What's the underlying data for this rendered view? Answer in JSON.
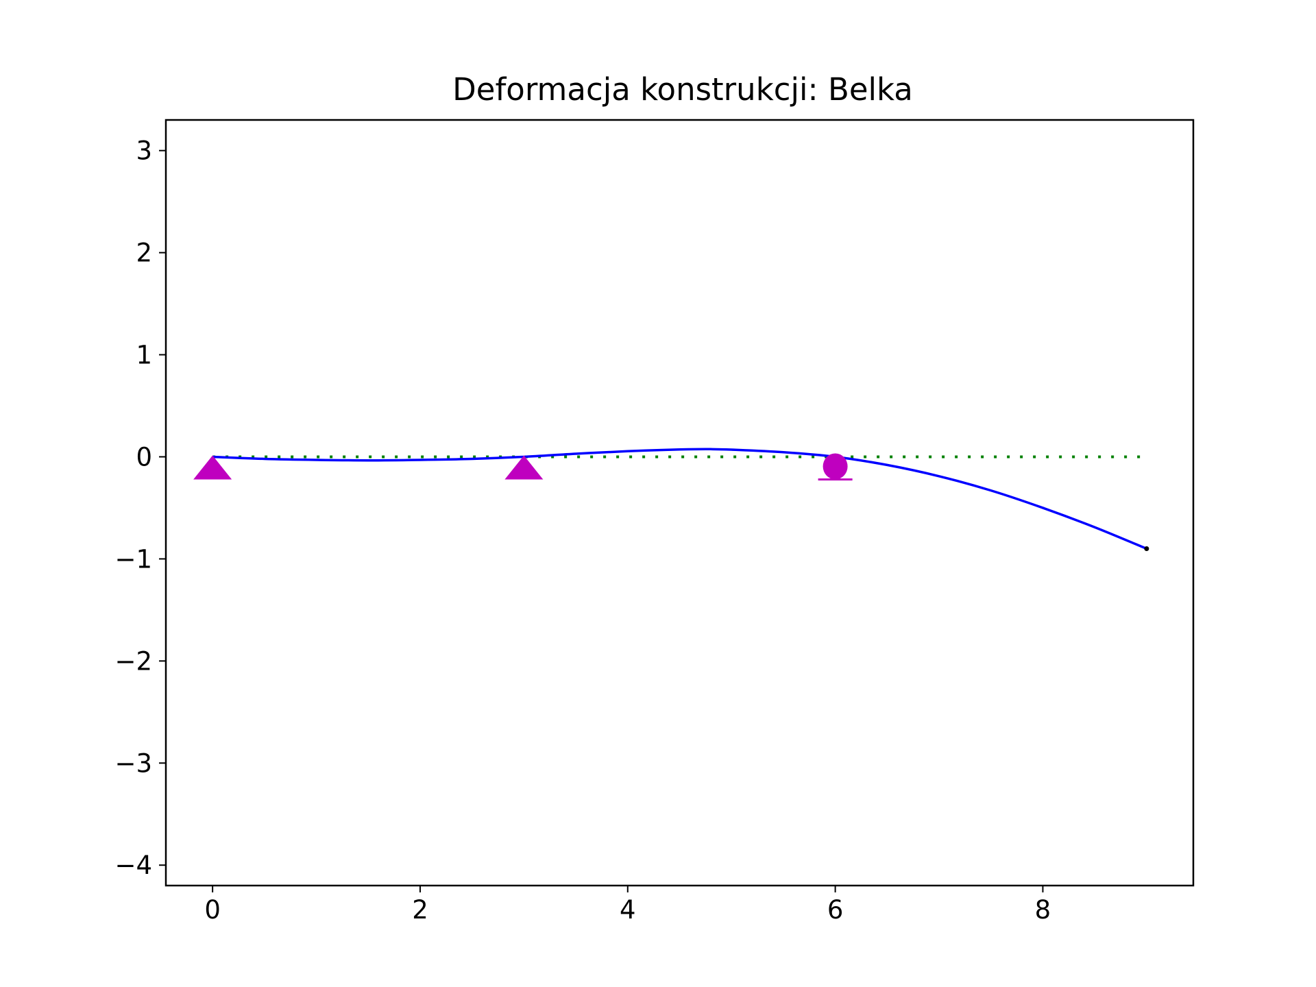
{
  "chart_data": {
    "type": "line",
    "title": "Deformacja konstrukcji: Belka",
    "xlabel": "",
    "ylabel": "",
    "xlim": [
      -0.45,
      9.45
    ],
    "ylim": [
      -4.2,
      3.3
    ],
    "grid": false,
    "x_ticks": [
      0,
      2,
      4,
      6,
      8
    ],
    "x_tick_labels": [
      "0",
      "2",
      "4",
      "6",
      "8"
    ],
    "y_ticks": [
      -4,
      -3,
      -2,
      -1,
      0,
      1,
      2,
      3
    ],
    "y_tick_labels": [
      "−4",
      "−3",
      "−2",
      "−1",
      "0",
      "1",
      "2",
      "3"
    ],
    "series": [
      {
        "style": "dotted",
        "color": "#008000",
        "x": [
          0,
          9
        ],
        "y": [
          0,
          0
        ]
      },
      {
        "style": "solid",
        "color": "#0000ff",
        "x": [
          0,
          0.5,
          1,
          1.5,
          2,
          2.5,
          3,
          3.5,
          4,
          4.5,
          4.8,
          5,
          5.5,
          6,
          6.5,
          7,
          7.5,
          8,
          8.5,
          9
        ],
        "y": [
          0,
          -0.02,
          -0.03,
          -0.035,
          -0.03,
          -0.02,
          0,
          0.03,
          0.055,
          0.072,
          0.075,
          0.07,
          0.045,
          0,
          -0.08,
          -0.19,
          -0.33,
          -0.5,
          -0.69,
          -0.9
        ]
      }
    ],
    "end_marker": {
      "x": 9,
      "y": -0.9,
      "color": "#000000"
    },
    "supports": [
      {
        "type": "pinned",
        "x": 0,
        "color": "#bf00bf"
      },
      {
        "type": "pinned",
        "x": 3,
        "color": "#bf00bf"
      },
      {
        "type": "roller",
        "x": 6,
        "color": "#bf00bf"
      }
    ]
  }
}
